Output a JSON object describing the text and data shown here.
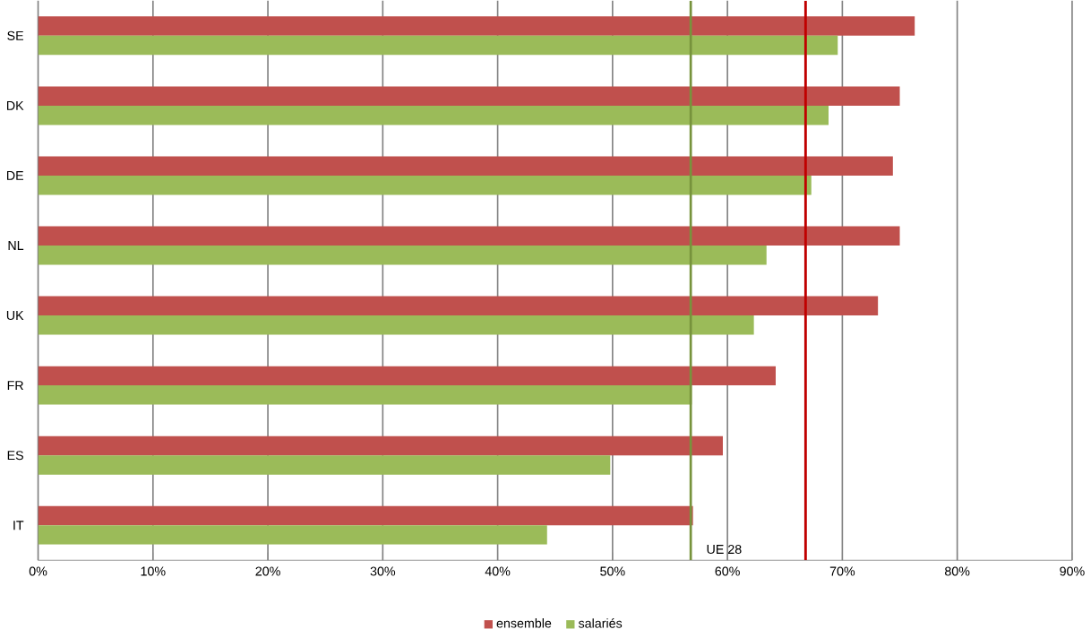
{
  "chart_data": {
    "type": "bar",
    "orientation": "horizontal",
    "categories": [
      "SE",
      "DK",
      "DE",
      "NL",
      "UK",
      "FR",
      "ES",
      "IT"
    ],
    "series": [
      {
        "name": "ensemble",
        "color": "#c0504d",
        "values": [
          76.3,
          75.0,
          74.4,
          75.0,
          73.1,
          64.2,
          59.6,
          57.0
        ]
      },
      {
        "name": "salariés",
        "color": "#9bbb59",
        "values": [
          69.6,
          68.8,
          67.3,
          63.4,
          62.3,
          56.9,
          49.8,
          44.3
        ]
      }
    ],
    "xlim": [
      0,
      90
    ],
    "xticks": [
      {
        "value": 0,
        "label": "0%"
      },
      {
        "value": 10,
        "label": "10%"
      },
      {
        "value": 20,
        "label": "20%"
      },
      {
        "value": 30,
        "label": "30%"
      },
      {
        "value": 40,
        "label": "40%"
      },
      {
        "value": 50,
        "label": "50%"
      },
      {
        "value": 60,
        "label": "60%"
      },
      {
        "value": 70,
        "label": "70%"
      },
      {
        "value": 80,
        "label": "80%"
      },
      {
        "value": 90,
        "label": "90%"
      }
    ],
    "ref_lines": [
      {
        "axis": "x",
        "value": 56.8,
        "color": "#77933c"
      },
      {
        "axis": "x",
        "value": 66.8,
        "color": "#c00000"
      }
    ],
    "annotations": [
      "UE 28"
    ],
    "grid": "x",
    "legend": "bottom"
  }
}
